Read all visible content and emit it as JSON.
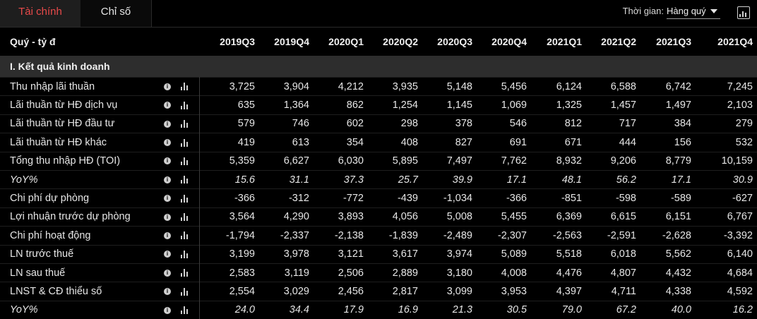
{
  "tabs": [
    {
      "label": "Tài chính",
      "active": true
    },
    {
      "label": "Chỉ số",
      "active": false
    }
  ],
  "period": {
    "label": "Thời gian:",
    "value": "Hàng quý"
  },
  "table": {
    "header_label": "Quý - tỷ đ",
    "columns": [
      "2019Q3",
      "2019Q4",
      "2020Q1",
      "2020Q2",
      "2020Q3",
      "2020Q4",
      "2021Q1",
      "2021Q2",
      "2021Q3",
      "2021Q4"
    ],
    "section": "I. Kết quả kinh doanh",
    "rows": [
      {
        "label": "Thu nhập lãi thuần",
        "italic": false,
        "values": [
          "3,725",
          "3,904",
          "4,212",
          "3,935",
          "5,148",
          "5,456",
          "6,124",
          "6,588",
          "6,742",
          "7,245"
        ]
      },
      {
        "label": "Lãi thuần từ HĐ dịch vụ",
        "italic": false,
        "values": [
          "635",
          "1,364",
          "862",
          "1,254",
          "1,145",
          "1,069",
          "1,325",
          "1,457",
          "1,497",
          "2,103"
        ]
      },
      {
        "label": "Lãi thuần từ HĐ đầu tư",
        "italic": false,
        "values": [
          "579",
          "746",
          "602",
          "298",
          "378",
          "546",
          "812",
          "717",
          "384",
          "279"
        ]
      },
      {
        "label": "Lãi thuần từ HĐ khác",
        "italic": false,
        "values": [
          "419",
          "613",
          "354",
          "408",
          "827",
          "691",
          "671",
          "444",
          "156",
          "532"
        ]
      },
      {
        "label": "Tổng thu nhập HĐ (TOI)",
        "italic": false,
        "values": [
          "5,359",
          "6,627",
          "6,030",
          "5,895",
          "7,497",
          "7,762",
          "8,932",
          "9,206",
          "8,779",
          "10,159"
        ]
      },
      {
        "label": "YoY%",
        "italic": true,
        "values": [
          "15.6",
          "31.1",
          "37.3",
          "25.7",
          "39.9",
          "17.1",
          "48.1",
          "56.2",
          "17.1",
          "30.9"
        ]
      },
      {
        "label": "Chi phí dự phòng",
        "italic": false,
        "values": [
          "-366",
          "-312",
          "-772",
          "-439",
          "-1,034",
          "-366",
          "-851",
          "-598",
          "-589",
          "-627"
        ]
      },
      {
        "label": "Lợi nhuận trước dự phòng",
        "italic": false,
        "values": [
          "3,564",
          "4,290",
          "3,893",
          "4,056",
          "5,008",
          "5,455",
          "6,369",
          "6,615",
          "6,151",
          "6,767"
        ]
      },
      {
        "label": "Chi phí hoạt động",
        "italic": false,
        "values": [
          "-1,794",
          "-2,337",
          "-2,138",
          "-1,839",
          "-2,489",
          "-2,307",
          "-2,563",
          "-2,591",
          "-2,628",
          "-3,392"
        ]
      },
      {
        "label": "LN trước thuế",
        "italic": false,
        "values": [
          "3,199",
          "3,978",
          "3,121",
          "3,617",
          "3,974",
          "5,089",
          "5,518",
          "6,018",
          "5,562",
          "6,140"
        ]
      },
      {
        "label": "LN sau thuế",
        "italic": false,
        "values": [
          "2,583",
          "3,119",
          "2,506",
          "2,889",
          "3,180",
          "4,008",
          "4,476",
          "4,807",
          "4,432",
          "4,684"
        ]
      },
      {
        "label": "LNST & CĐ thiểu số",
        "italic": false,
        "values": [
          "2,554",
          "3,029",
          "2,456",
          "2,817",
          "3,099",
          "3,953",
          "4,397",
          "4,711",
          "4,338",
          "4,592"
        ]
      },
      {
        "label": "YoY%",
        "italic": true,
        "values": [
          "24.0",
          "34.4",
          "17.9",
          "16.9",
          "21.3",
          "30.5",
          "79.0",
          "67.2",
          "40.0",
          "16.2"
        ]
      }
    ]
  },
  "icons": {
    "info": "info-icon",
    "row_chart": "bar-chart-icon",
    "toolbar_chart": "chart-icon"
  },
  "colors": {
    "active_tab_text": "#e84a4a",
    "background": "#000000",
    "section_bg": "#2d2d2d"
  }
}
